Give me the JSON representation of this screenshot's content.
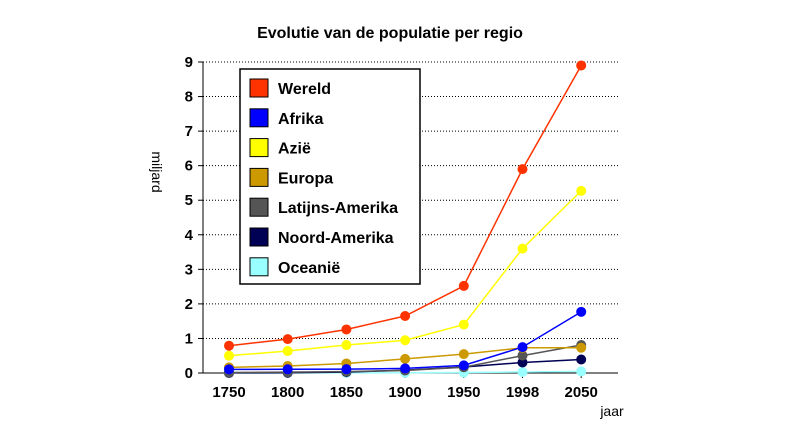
{
  "chart_data": {
    "type": "line",
    "title": "Evolutie van de populatie per regio",
    "xlabel": "jaar",
    "ylabel": "miljard",
    "x": [
      "1750",
      "1800",
      "1850",
      "1900",
      "1950",
      "1998",
      "2050"
    ],
    "ylim": [
      0,
      9
    ],
    "yticks": [
      "0",
      "1",
      "2",
      "3",
      "4",
      "5",
      "6",
      "7",
      "8",
      "9"
    ],
    "grid": "horizontal dotted",
    "legend_position": "top-left",
    "series": [
      {
        "name": "Wereld",
        "color": "#ff3300",
        "values": [
          0.79,
          0.98,
          1.26,
          1.65,
          2.52,
          5.9,
          8.9
        ]
      },
      {
        "name": "Afrika",
        "color": "#0000ff",
        "values": [
          0.106,
          0.107,
          0.111,
          0.133,
          0.221,
          0.749,
          1.77
        ]
      },
      {
        "name": "Azië",
        "color": "#ffff00",
        "values": [
          0.502,
          0.635,
          0.809,
          0.947,
          1.4,
          3.6,
          5.27
        ]
      },
      {
        "name": "Europa",
        "color": "#cc9900",
        "values": [
          0.163,
          0.203,
          0.276,
          0.408,
          0.547,
          0.729,
          0.73
        ]
      },
      {
        "name": "Latijns-Amerika",
        "color": "#555555",
        "values": [
          0.016,
          0.024,
          0.038,
          0.074,
          0.167,
          0.504,
          0.81
        ]
      },
      {
        "name": "Noord-Amerika",
        "color": "#000055",
        "values": [
          0.002,
          0.007,
          0.026,
          0.082,
          0.172,
          0.305,
          0.39
        ]
      },
      {
        "name": "Oceanië",
        "color": "#99ffff",
        "values": [
          0.002,
          0.002,
          0.002,
          0.006,
          0.013,
          0.03,
          0.046
        ]
      }
    ]
  }
}
